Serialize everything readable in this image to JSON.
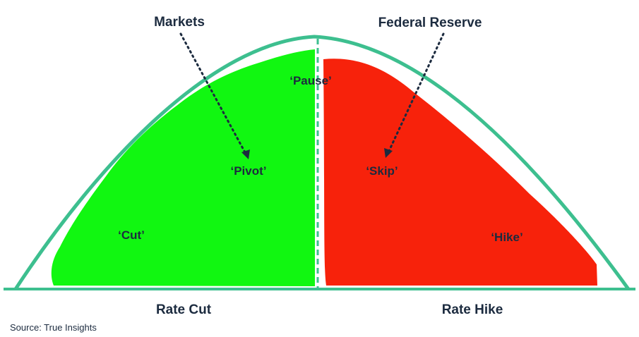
{
  "colors": {
    "curve": "#3dbf8f",
    "cut_region": "#11f711",
    "hike_region": "#f7220b",
    "text": "#1c2b3f"
  },
  "labels": {
    "markets": "Markets",
    "federal_reserve": "Federal Reserve",
    "pause": "‘Pause’",
    "pivot": "‘Pivot’",
    "skip": "‘Skip’",
    "cut": "‘Cut’",
    "hike": "‘Hike’"
  },
  "axis": {
    "left": "Rate Cut",
    "right": "Rate Hike"
  },
  "source": "Source: True Insights"
}
